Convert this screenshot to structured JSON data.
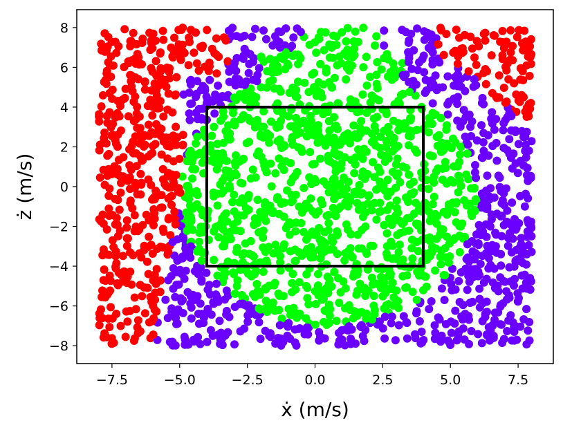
{
  "chart_data": {
    "type": "scatter",
    "xlabel": "ẋ (m/s)",
    "ylabel": "ż (m/s)",
    "xlim": [
      -8.8,
      8.8
    ],
    "ylim": [
      -8.9,
      8.9
    ],
    "x_ticks": [
      -7.5,
      -5.0,
      -2.5,
      0.0,
      2.5,
      5.0,
      7.5
    ],
    "x_tick_labels": [
      "−7.5",
      "−5.0",
      "−2.5",
      "0.0",
      "2.5",
      "5.0",
      "7.5"
    ],
    "y_ticks": [
      -8,
      -6,
      -4,
      -2,
      0,
      2,
      4,
      6,
      8
    ],
    "y_tick_labels": [
      "−8",
      "−6",
      "−4",
      "−2",
      "0",
      "2",
      "4",
      "6",
      "8"
    ],
    "grid": false,
    "series": [
      {
        "color": "#ff0000",
        "region": "outer corners (left band and top-right)"
      },
      {
        "color": "#6a00ff",
        "region": "ring between red and green"
      },
      {
        "color": "#00ff00",
        "region": "central disk and upper lobe"
      }
    ],
    "sample_domain": {
      "x": [
        -8,
        8
      ],
      "y": [
        -8,
        8
      ]
    },
    "approx_point_count": 2400,
    "annotations": [
      {
        "type": "rectangle",
        "x": [
          -4,
          4
        ],
        "y": [
          -4,
          4
        ],
        "color": "#000000"
      }
    ]
  }
}
